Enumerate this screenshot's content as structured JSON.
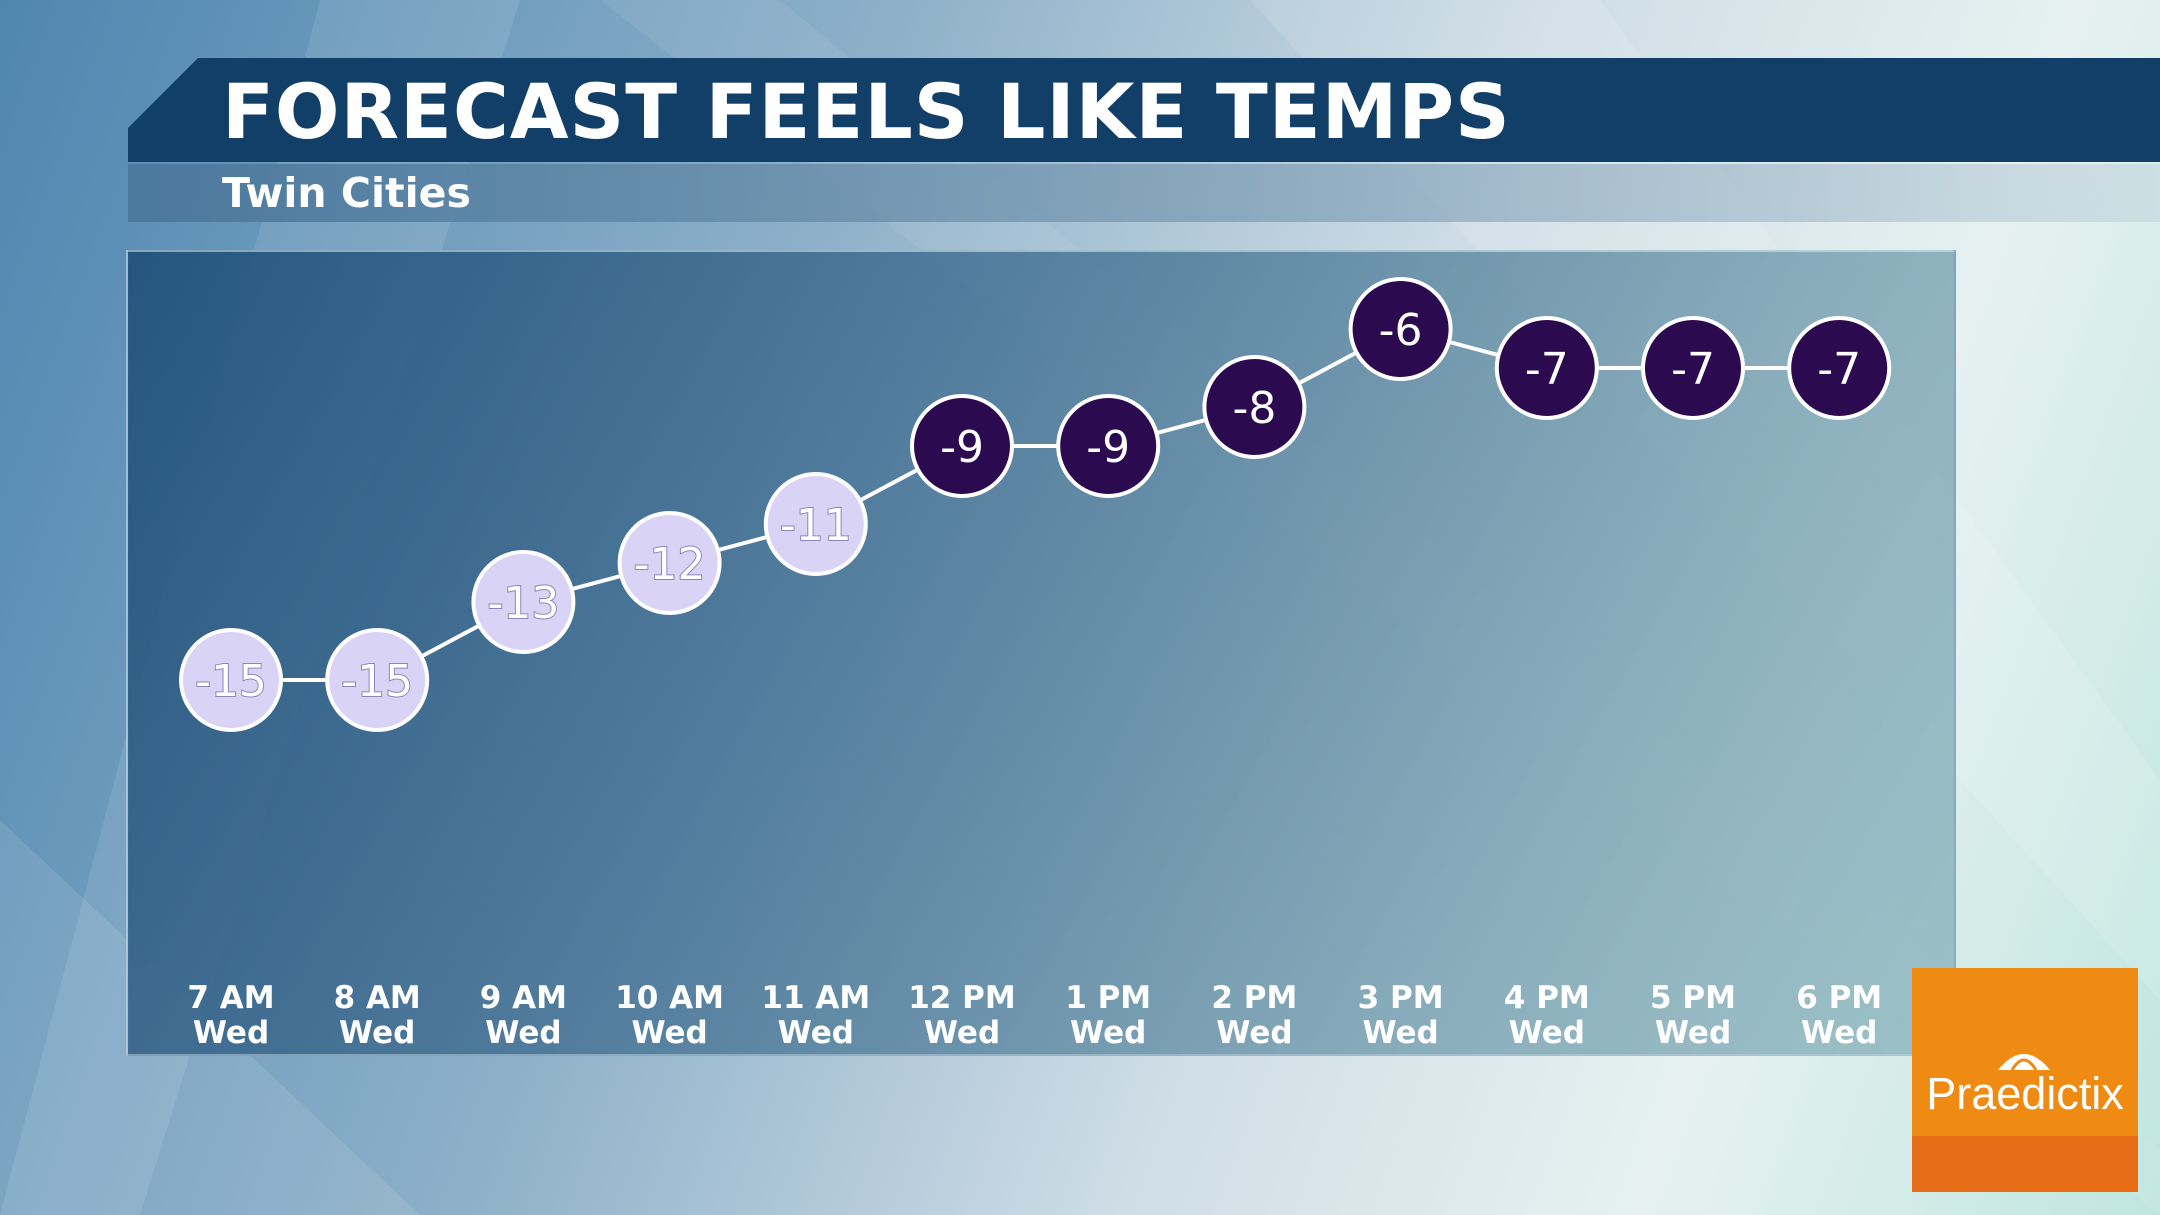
{
  "header": {
    "title": "FORECAST FEELS LIKE TEMPS",
    "subtitle": "Twin Cities"
  },
  "logo": {
    "text": "Praedictix",
    "icon": "umbrella-icon",
    "color": "#ef8a12"
  },
  "colors": {
    "title_bar": "#123f68",
    "cold_marker": "#d9d3f6",
    "warm_marker": "#2c0a4f"
  },
  "chart_data": {
    "type": "line",
    "title": "FORECAST FEELS LIKE TEMPS",
    "subtitle": "Twin Cities",
    "xlabel": "",
    "ylabel": "",
    "grid": false,
    "categories": [
      {
        "time": "7 AM",
        "day": "Wed"
      },
      {
        "time": "8 AM",
        "day": "Wed"
      },
      {
        "time": "9 AM",
        "day": "Wed"
      },
      {
        "time": "10 AM",
        "day": "Wed"
      },
      {
        "time": "11 AM",
        "day": "Wed"
      },
      {
        "time": "12 PM",
        "day": "Wed"
      },
      {
        "time": "1 PM",
        "day": "Wed"
      },
      {
        "time": "2 PM",
        "day": "Wed"
      },
      {
        "time": "3 PM",
        "day": "Wed"
      },
      {
        "time": "4 PM",
        "day": "Wed"
      },
      {
        "time": "5 PM",
        "day": "Wed"
      },
      {
        "time": "6 PM",
        "day": "Wed"
      }
    ],
    "values": [
      -15,
      -15,
      -13,
      -12,
      -11,
      -9,
      -9,
      -8,
      -6,
      -7,
      -7,
      -7
    ],
    "labels": [
      "-15",
      "-15",
      "-13",
      "-12",
      "-11",
      "-9",
      "-9",
      "-8",
      "-6",
      "-7",
      "-7",
      "-7"
    ],
    "marker_style": [
      "light",
      "light",
      "light",
      "light",
      "light",
      "dark",
      "dark",
      "dark",
      "dark",
      "dark",
      "dark",
      "dark"
    ]
  }
}
